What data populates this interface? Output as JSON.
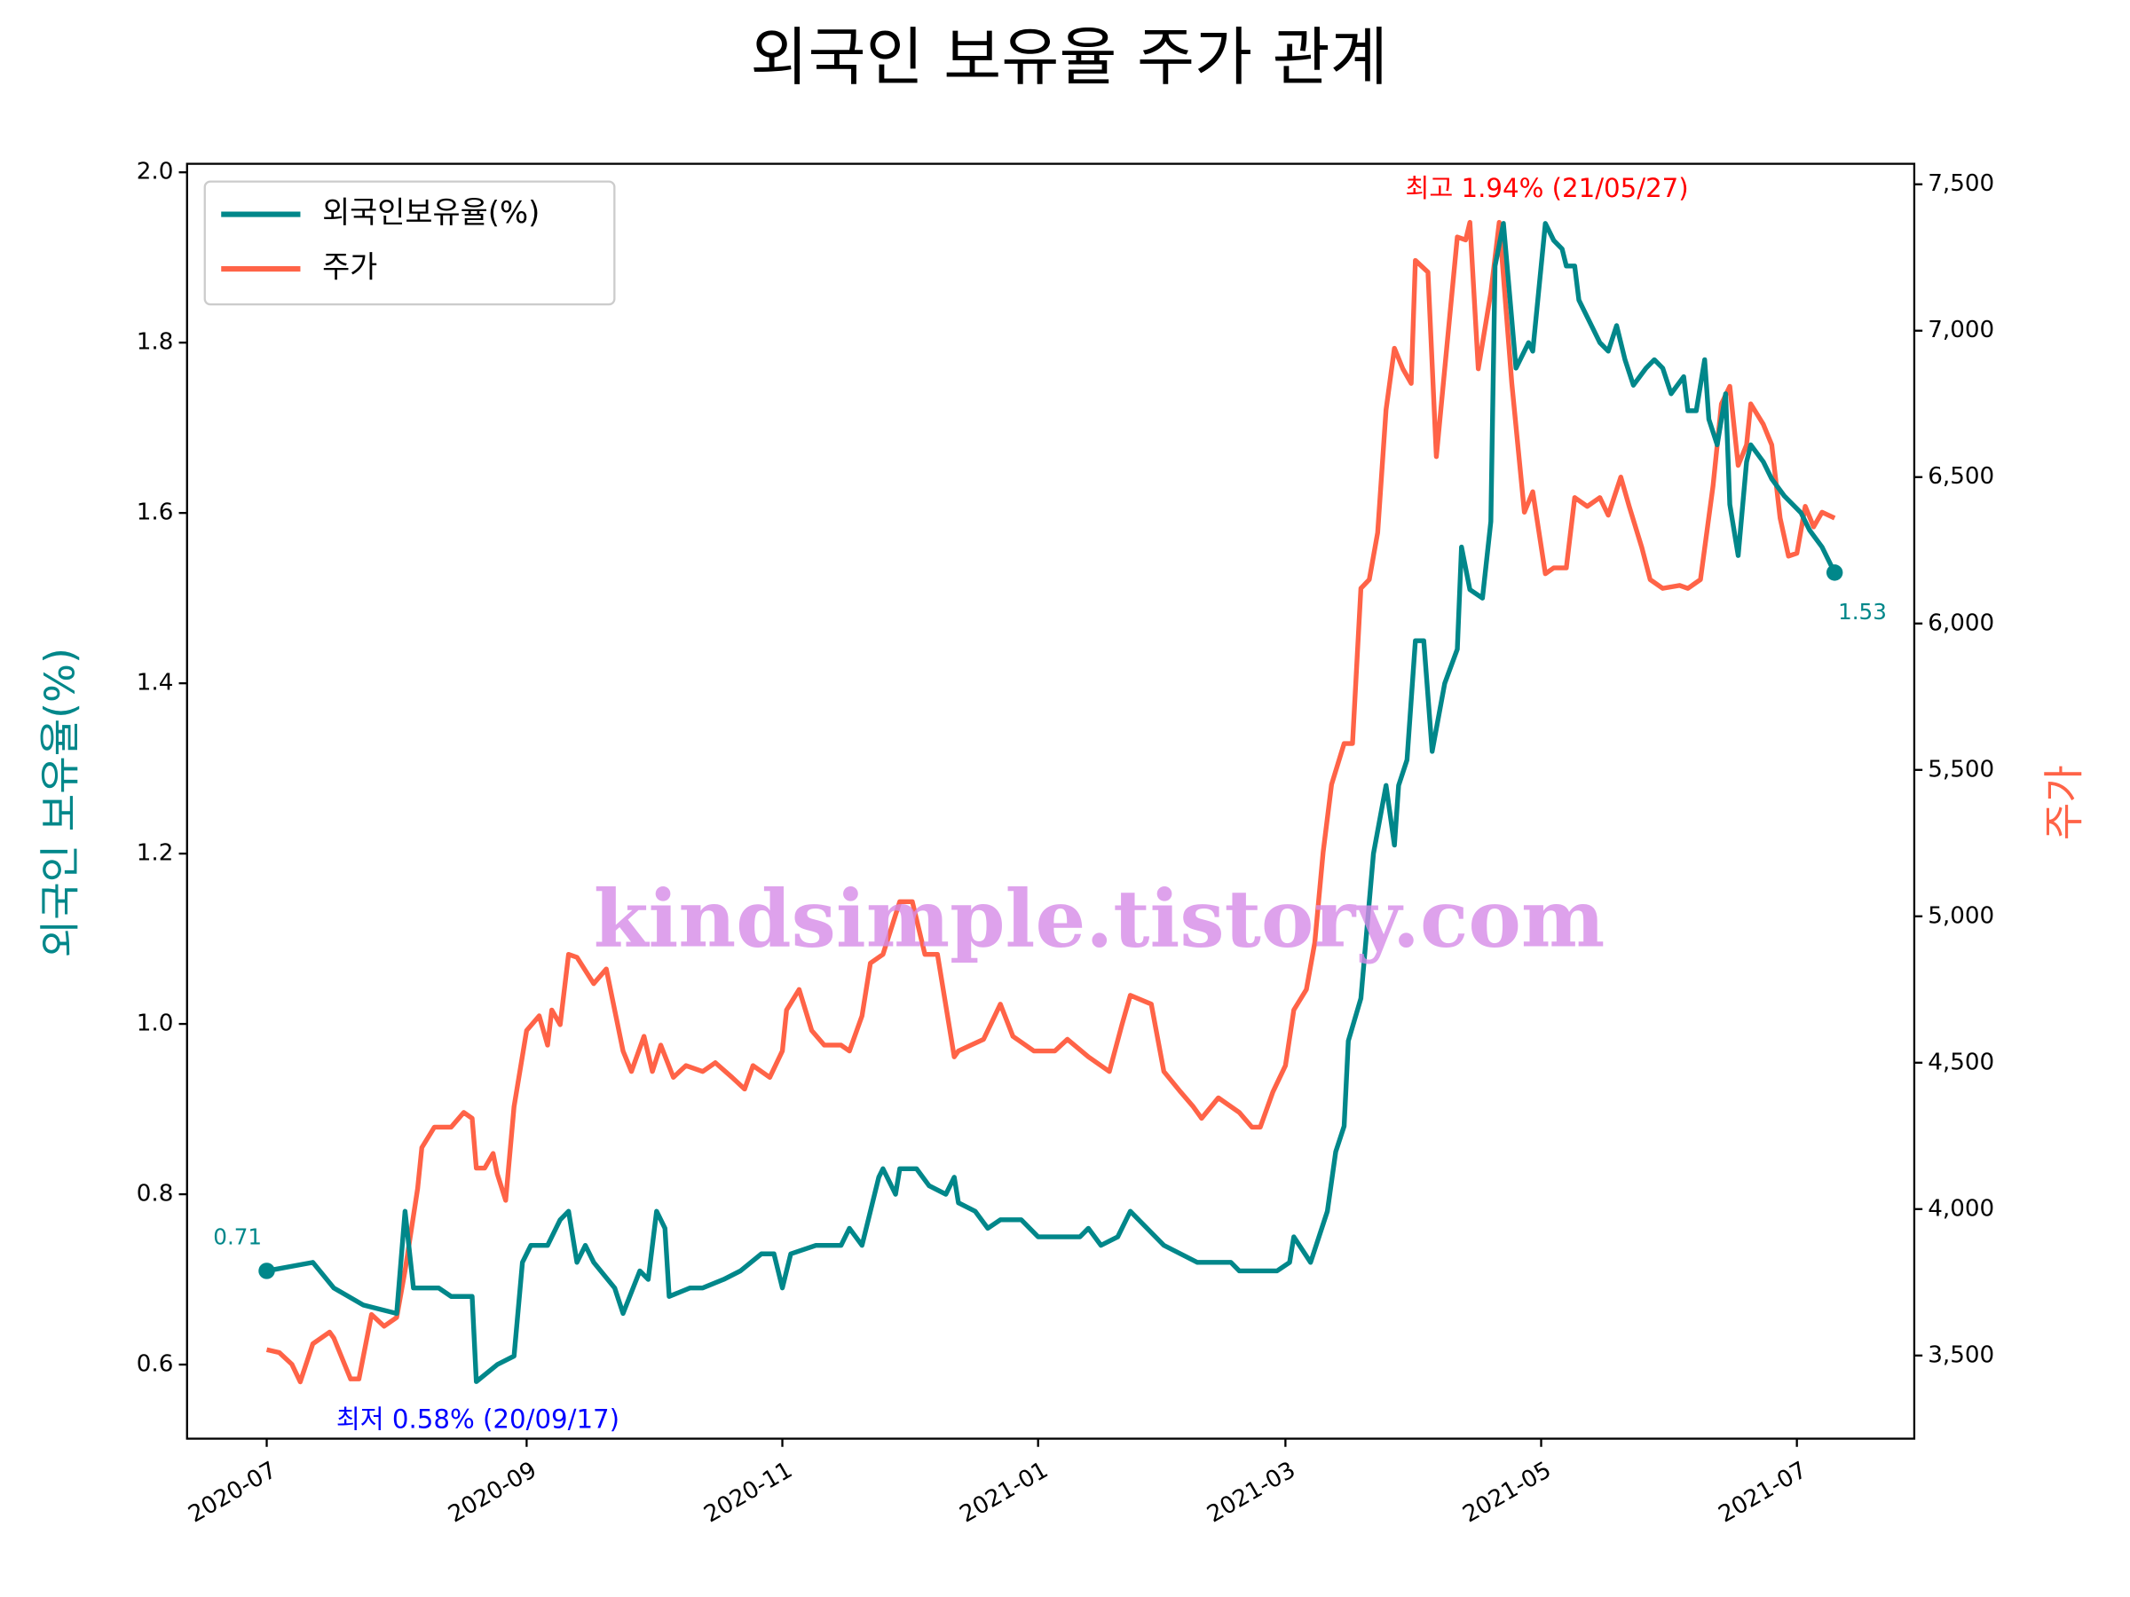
{
  "chart_data": {
    "type": "line",
    "title": "외국인 보유율 주가 관계",
    "ylabel": "외국인 보유율(%)",
    "y2label": "주가",
    "xlim": [
      "2020-06-12",
      "2021-07-29"
    ],
    "xticks": [
      "2020-07",
      "2020-09",
      "2020-11",
      "2021-01",
      "2021-03",
      "2021-05",
      "2021-07"
    ],
    "ylim": [
      0.513,
      2.01
    ],
    "yticks": [
      0.6,
      0.8,
      {
        "value": 1,
        "label": "1.0"
      },
      1.2,
      1.4,
      1.6,
      1.8,
      {
        "value": 2,
        "label": "2.0"
      }
    ],
    "y2lim": [
      3216,
      7570
    ],
    "y2ticks": [
      {
        "value": 3500,
        "label": "3,500"
      },
      {
        "value": 4000,
        "label": "4,000"
      },
      {
        "value": 4500,
        "label": "4,500"
      },
      {
        "value": 5000,
        "label": "5,000"
      },
      {
        "value": 5500,
        "label": "5,500"
      },
      {
        "value": 6000,
        "label": "6,000"
      },
      {
        "value": 6500,
        "label": "6,500"
      },
      {
        "value": 7000,
        "label": "7,000"
      },
      {
        "value": 7500,
        "label": "7,500"
      }
    ],
    "grid": false,
    "legend": "upper left",
    "annotations": [
      "0.71",
      "1.53",
      "최고 1.94% (21/05/27)",
      "최저 0.58% (20/09/17)"
    ],
    "watermark": "kindsimple.tistory.com",
    "series": [
      {
        "name": "외국인보유율(%)",
        "color": "#00878a",
        "axis": "y",
        "x": [
          "2020-07-01",
          "2020-07-12",
          "2020-07-17",
          "2020-07-24",
          "2020-08-01",
          "2020-08-03",
          "2020-08-05",
          "2020-08-11",
          "2020-08-14",
          "2020-08-19",
          "2020-08-20",
          "2020-08-25",
          "2020-08-29",
          "2020-08-31",
          "2020-09-02",
          "2020-09-06",
          "2020-09-09",
          "2020-09-11",
          "2020-09-13",
          "2020-09-15",
          "2020-09-17",
          "2020-09-22",
          "2020-09-24",
          "2020-09-28",
          "2020-09-30",
          "2020-10-02",
          "2020-10-04",
          "2020-10-05",
          "2020-10-10",
          "2020-10-13",
          "2020-10-18",
          "2020-10-22",
          "2020-10-27",
          "2020-10-30",
          "2020-11-01",
          "2020-11-03",
          "2020-11-09",
          "2020-11-15",
          "2020-11-17",
          "2020-11-20",
          "2020-11-22",
          "2020-11-24",
          "2020-11-25",
          "2020-11-28",
          "2020-11-29",
          "2020-12-03",
          "2020-12-06",
          "2020-12-10",
          "2020-12-12",
          "2020-12-13",
          "2020-12-17",
          "2020-12-20",
          "2020-12-23",
          "2020-12-28",
          "2021-01-01",
          "2021-01-11",
          "2021-01-13",
          "2021-01-16",
          "2021-01-20",
          "2021-01-23",
          "2021-01-31",
          "2021-02-08",
          "2021-02-16",
          "2021-02-18",
          "2021-02-27",
          "2021-03-02",
          "2021-03-03",
          "2021-03-07",
          "2021-03-11",
          "2021-03-13",
          "2021-03-15",
          "2021-03-16",
          "2021-03-19",
          "2021-03-22",
          "2021-03-25",
          "2021-03-27",
          "2021-03-28",
          "2021-03-30",
          "2021-04-01",
          "2021-04-03",
          "2021-04-05",
          "2021-04-08",
          "2021-04-11",
          "2021-04-12",
          "2021-04-14",
          "2021-04-17",
          "2021-04-19",
          "2021-04-20",
          "2021-04-22",
          "2021-04-25",
          "2021-04-28",
          "2021-04-29",
          "2021-05-02",
          "2021-05-04",
          "2021-05-06",
          "2021-05-07",
          "2021-05-09",
          "2021-05-10",
          "2021-05-13",
          "2021-05-15",
          "2021-05-17",
          "2021-05-19",
          "2021-05-21",
          "2021-05-23",
          "2021-05-26",
          "2021-05-28",
          "2021-05-30",
          "2021-06-01",
          "2021-06-04",
          "2021-06-05",
          "2021-06-07",
          "2021-06-09",
          "2021-06-10",
          "2021-06-12",
          "2021-06-14",
          "2021-06-15",
          "2021-06-17",
          "2021-06-19",
          "2021-06-20",
          "2021-06-23",
          "2021-06-25",
          "2021-06-28",
          "2021-07-02",
          "2021-07-04",
          "2021-07-07",
          "2021-07-10"
        ],
        "values": [
          0.71,
          0.72,
          0.69,
          0.67,
          0.66,
          0.78,
          0.69,
          0.69,
          0.68,
          0.68,
          0.58,
          0.6,
          0.61,
          0.72,
          0.74,
          0.74,
          0.77,
          0.78,
          0.72,
          0.74,
          0.72,
          0.69,
          0.66,
          0.71,
          0.7,
          0.78,
          0.76,
          0.68,
          0.69,
          0.69,
          0.7,
          0.71,
          0.73,
          0.73,
          0.69,
          0.73,
          0.74,
          0.74,
          0.76,
          0.74,
          0.78,
          0.82,
          0.83,
          0.8,
          0.83,
          0.83,
          0.81,
          0.8,
          0.82,
          0.79,
          0.78,
          0.76,
          0.77,
          0.77,
          0.75,
          0.75,
          0.76,
          0.74,
          0.75,
          0.78,
          0.74,
          0.72,
          0.72,
          0.71,
          0.71,
          0.72,
          0.75,
          0.72,
          0.78,
          0.85,
          0.88,
          0.98,
          1.03,
          1.2,
          1.28,
          1.21,
          1.28,
          1.31,
          1.45,
          1.45,
          1.32,
          1.4,
          1.44,
          1.56,
          1.51,
          1.5,
          1.59,
          1.89,
          1.94,
          1.77,
          1.8,
          1.79,
          1.94,
          1.92,
          1.91,
          1.89,
          1.89,
          1.85,
          1.82,
          1.8,
          1.79,
          1.82,
          1.78,
          1.75,
          1.77,
          1.78,
          1.77,
          1.74,
          1.76,
          1.72,
          1.72,
          1.78,
          1.71,
          1.68,
          1.74,
          1.61,
          1.55,
          1.66,
          1.68,
          1.66,
          1.64,
          1.62,
          1.6,
          1.58,
          1.56,
          1.53
        ]
      },
      {
        "name": "주가",
        "color": "#ff6347",
        "axis": "y2",
        "x": [
          "2020-07-01",
          "2020-07-04",
          "2020-07-07",
          "2020-07-09",
          "2020-07-12",
          "2020-07-16",
          "2020-07-17",
          "2020-07-21",
          "2020-07-23",
          "2020-07-26",
          "2020-07-29",
          "2020-08-01",
          "2020-08-03",
          "2020-08-06",
          "2020-08-07",
          "2020-08-10",
          "2020-08-14",
          "2020-08-17",
          "2020-08-19",
          "2020-08-20",
          "2020-08-22",
          "2020-08-24",
          "2020-08-25",
          "2020-08-27",
          "2020-08-29",
          "2020-09-01",
          "2020-09-04",
          "2020-09-06",
          "2020-09-07",
          "2020-09-09",
          "2020-09-11",
          "2020-09-13",
          "2020-09-17",
          "2020-09-20",
          "2020-09-24",
          "2020-09-26",
          "2020-09-29",
          "2020-10-01",
          "2020-10-03",
          "2020-10-06",
          "2020-10-09",
          "2020-10-13",
          "2020-10-16",
          "2020-10-20",
          "2020-10-23",
          "2020-10-25",
          "2020-10-29",
          "2020-11-01",
          "2020-11-02",
          "2020-11-05",
          "2020-11-08",
          "2020-11-11",
          "2020-11-15",
          "2020-11-17",
          "2020-11-20",
          "2020-11-22",
          "2020-11-25",
          "2020-11-29",
          "2020-12-02",
          "2020-12-05",
          "2020-12-08",
          "2020-12-12",
          "2020-12-13",
          "2020-12-16",
          "2020-12-19",
          "2020-12-23",
          "2020-12-26",
          "2020-12-31",
          "2021-01-05",
          "2021-01-08",
          "2021-01-13",
          "2021-01-18",
          "2021-01-21",
          "2021-01-23",
          "2021-01-28",
          "2021-01-31",
          "2021-02-04",
          "2021-02-07",
          "2021-02-09",
          "2021-02-13",
          "2021-02-18",
          "2021-02-21",
          "2021-02-23",
          "2021-02-26",
          "2021-03-01",
          "2021-03-03",
          "2021-03-06",
          "2021-03-08",
          "2021-03-10",
          "2021-03-12",
          "2021-03-15",
          "2021-03-17",
          "2021-03-19",
          "2021-03-21",
          "2021-03-23",
          "2021-03-25",
          "2021-03-27",
          "2021-03-29",
          "2021-03-31",
          "2021-04-01",
          "2021-04-04",
          "2021-04-06",
          "2021-04-08",
          "2021-04-11",
          "2021-04-13",
          "2021-04-14",
          "2021-04-16",
          "2021-04-19",
          "2021-04-21",
          "2021-04-24",
          "2021-04-27",
          "2021-04-29",
          "2021-05-02",
          "2021-05-04",
          "2021-05-07",
          "2021-05-09",
          "2021-05-12",
          "2021-05-15",
          "2021-05-17",
          "2021-05-20",
          "2021-05-22",
          "2021-05-25",
          "2021-05-27",
          "2021-05-30",
          "2021-06-03",
          "2021-06-05",
          "2021-06-08",
          "2021-06-11",
          "2021-06-13",
          "2021-06-15",
          "2021-06-17",
          "2021-06-19",
          "2021-06-20",
          "2021-06-23",
          "2021-06-25",
          "2021-06-27",
          "2021-06-29",
          "2021-07-01",
          "2021-07-03",
          "2021-07-05",
          "2021-07-07",
          "2021-07-10"
        ],
        "values": [
          3520,
          3510,
          3470,
          3410,
          3540,
          3580,
          3560,
          3420,
          3420,
          3640,
          3600,
          3630,
          3790,
          4070,
          4210,
          4280,
          4280,
          4330,
          4310,
          4140,
          4140,
          4190,
          4120,
          4030,
          4350,
          4610,
          4660,
          4560,
          4680,
          4630,
          4870,
          4860,
          4770,
          4820,
          4540,
          4470,
          4590,
          4470,
          4560,
          4450,
          4490,
          4470,
          4500,
          4450,
          4410,
          4490,
          4450,
          4540,
          4680,
          4750,
          4610,
          4560,
          4560,
          4540,
          4660,
          4840,
          4870,
          5050,
          5050,
          4870,
          4870,
          4520,
          4540,
          4560,
          4580,
          4700,
          4590,
          4540,
          4540,
          4580,
          4520,
          4470,
          4630,
          4730,
          4700,
          4470,
          4400,
          4350,
          4310,
          4380,
          4330,
          4280,
          4280,
          4400,
          4490,
          4680,
          4750,
          4910,
          5220,
          5450,
          5590,
          5590,
          6120,
          6150,
          6310,
          6730,
          6940,
          6870,
          6820,
          7240,
          7200,
          6570,
          6870,
          7320,
          7310,
          7370,
          6870,
          7130,
          7370,
          6820,
          6380,
          6450,
          6170,
          6190,
          6190,
          6430,
          6400,
          6430,
          6370,
          6500,
          6400,
          6260,
          6150,
          6120,
          6130,
          6120,
          6150,
          6470,
          6750,
          6810,
          6540,
          6610,
          6750,
          6680,
          6610,
          6360,
          6230,
          6240,
          6400,
          6330,
          6380,
          6360
        ]
      }
    ]
  }
}
